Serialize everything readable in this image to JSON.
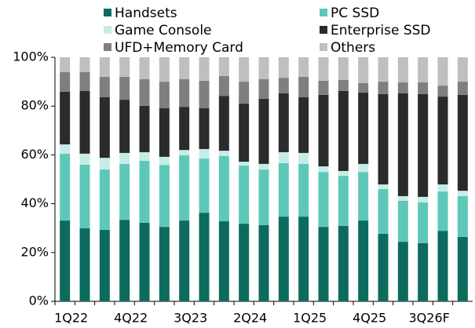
{
  "chart_data": {
    "type": "bar",
    "stacked": true,
    "categories": [
      "1Q22",
      null,
      null,
      "4Q22",
      null,
      null,
      "3Q23",
      null,
      null,
      "2Q24",
      null,
      null,
      "1Q25",
      null,
      null,
      "4Q25",
      null,
      null,
      "3Q26F",
      null,
      null
    ],
    "series": [
      {
        "name": "Handsets",
        "color": "#0d6b5e",
        "values": [
          33.1,
          29.9,
          29.3,
          33.4,
          32.2,
          30.5,
          33.1,
          36.3,
          32.8,
          31.8,
          31.2,
          34.7,
          34.7,
          30.5,
          30.9,
          33.1,
          27.7,
          24.4,
          23.8,
          28.9,
          26.4
        ]
      },
      {
        "name": "PC SSD",
        "color": "#5ec8b8",
        "values": [
          27.4,
          26.1,
          24.7,
          22.9,
          25.4,
          25.4,
          26.7,
          22.2,
          26.7,
          23.8,
          22.8,
          21.9,
          21.6,
          22.5,
          20.5,
          19.9,
          18.3,
          16.8,
          16.7,
          16.1,
          16.7
        ]
      },
      {
        "name": "Game Console",
        "color": "#c6ece7",
        "values": [
          3.8,
          4.5,
          4.8,
          4.5,
          3.5,
          3.3,
          2.2,
          3.9,
          2.2,
          1.6,
          2.3,
          4.5,
          4.5,
          2.3,
          2.0,
          3.3,
          1.9,
          1.9,
          2.3,
          2.9,
          2.2
        ]
      },
      {
        "name": "Enterprise SSD",
        "color": "#2b2b2b",
        "values": [
          21.6,
          25.7,
          24.8,
          21.8,
          19.0,
          19.9,
          17.7,
          16.7,
          22.5,
          23.8,
          26.7,
          24.1,
          22.8,
          29.3,
          32.8,
          29.2,
          37.0,
          42.1,
          42.1,
          36.0,
          39.3
        ]
      },
      {
        "name": "UFD+Memory Card",
        "color": "#7f7f7f",
        "values": [
          8.0,
          7.7,
          8.4,
          9.4,
          10.9,
          10.9,
          11.3,
          11.3,
          8.1,
          9.0,
          8.0,
          6.4,
          8.4,
          5.8,
          4.5,
          3.9,
          5.1,
          4.5,
          4.8,
          4.5,
          5.4
        ]
      },
      {
        "name": "Others",
        "color": "#bfbfbf",
        "values": [
          6.1,
          6.1,
          8.0,
          8.0,
          9.0,
          10.0,
          9.0,
          9.6,
          7.7,
          10.0,
          9.0,
          8.4,
          8.0,
          9.6,
          9.3,
          10.6,
          10.0,
          10.3,
          10.3,
          11.6,
          10.0
        ]
      }
    ],
    "ylim": [
      0,
      100
    ],
    "yticks": [
      {
        "value": 0,
        "label": "0%"
      },
      {
        "value": 20,
        "label": "20%"
      },
      {
        "value": 40,
        "label": "40%"
      },
      {
        "value": 60,
        "label": "60%"
      },
      {
        "value": 80,
        "label": "80%"
      },
      {
        "value": 100,
        "label": "100%"
      }
    ],
    "grid": false
  }
}
